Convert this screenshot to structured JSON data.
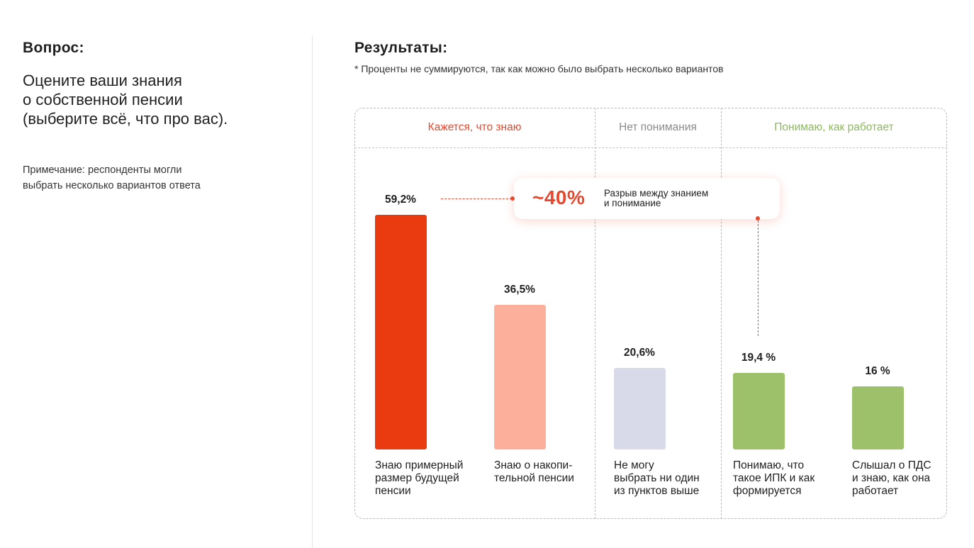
{
  "question": {
    "label": "Вопрос:",
    "text_lines": [
      "Оцените ваши знания",
      "о собственной пенсии",
      "(выберите всё, что про вас)."
    ],
    "note_lines": [
      "Примечание: респонденты могли",
      "выбрать несколько вариантов ответа"
    ]
  },
  "results": {
    "title": "Результаты:",
    "note": "* Проценты не суммируются, так как можно было выбрать несколько вариантов"
  },
  "categories": [
    {
      "label": "Кажется, что знаю",
      "color": "#e9482d"
    },
    {
      "label": "Нет понимания",
      "color": "#8a8a8a"
    },
    {
      "label": "Понимаю, как работает",
      "color": "#8cb85f"
    }
  ],
  "callout": {
    "value": "~40%",
    "text_lines": [
      "Разрыв между знанием",
      "и понимание"
    ],
    "color": "#e9482d"
  },
  "chart_data": {
    "type": "bar",
    "title": "Результаты:",
    "ylim": [
      0,
      59.2
    ],
    "bars": [
      {
        "value": 59.2,
        "value_label": "59,2%",
        "label_lines": [
          "Знаю примерный",
          "размер будущей",
          "пенсии"
        ],
        "color": "#e93a10",
        "category": "Кажется, что знаю"
      },
      {
        "value": 36.5,
        "value_label": "36,5%",
        "label_lines": [
          "Знаю о накопи-",
          "тельной пенсии"
        ],
        "color": "#fcb09b",
        "category": "Кажется, что знаю"
      },
      {
        "value": 20.6,
        "value_label": "20,6%",
        "label_lines": [
          "Не могу",
          "выбрать ни один",
          "из пунктов выше"
        ],
        "color": "#d8dae9",
        "category": "Нет понимания"
      },
      {
        "value": 19.4,
        "value_label": "19,4 %",
        "label_lines": [
          "Понимаю, что",
          "такое ИПК и как",
          "формируется"
        ],
        "color": "#9cc16a",
        "category": "Понимаю, как работает"
      },
      {
        "value": 16,
        "value_label": "16 %",
        "label_lines": [
          "Слышал о ПДС",
          "и знаю, как она",
          "работает"
        ],
        "color": "#9cc16a",
        "category": "Понимаю, как работает"
      }
    ]
  }
}
